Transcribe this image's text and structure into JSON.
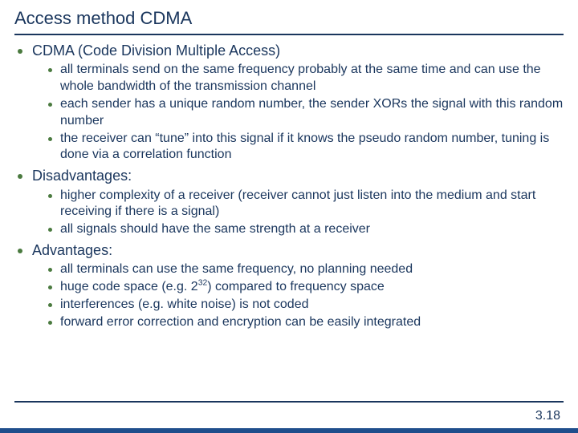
{
  "colors": {
    "text": "#1a365d",
    "bullet": "#4a7a3f",
    "rule": "#1a365d",
    "band": "#1f4e8c",
    "background": "#ffffff"
  },
  "typography": {
    "title_fontsize": 22,
    "outer_fontsize": 18,
    "inner_fontsize": 16,
    "font_family": "Verdana"
  },
  "title": "Access method CDMA",
  "page_number": "3.18",
  "sections": [
    {
      "heading": "CDMA (Code Division Multiple Access)",
      "items": [
        "all terminals send on the same frequency probably at the same time and can use the whole bandwidth of  the transmission channel",
        "each sender has a unique random number, the sender XORs the signal with this random number",
        "the receiver can “tune” into this signal if it knows the pseudo random number, tuning is done via a correlation function"
      ]
    },
    {
      "heading": "Disadvantages:",
      "items": [
        "higher complexity of a receiver (receiver cannot just listen into the medium and start receiving if there is a signal)",
        "all signals should have the same strength at a receiver"
      ]
    },
    {
      "heading": "Advantages:",
      "items": [
        "all terminals can use the same frequency, no planning needed",
        "huge code space (e.g. 2^{32}) compared to frequency space",
        "interferences (e.g. white noise) is not coded",
        "forward error correction and encryption can be easily integrated"
      ]
    }
  ]
}
